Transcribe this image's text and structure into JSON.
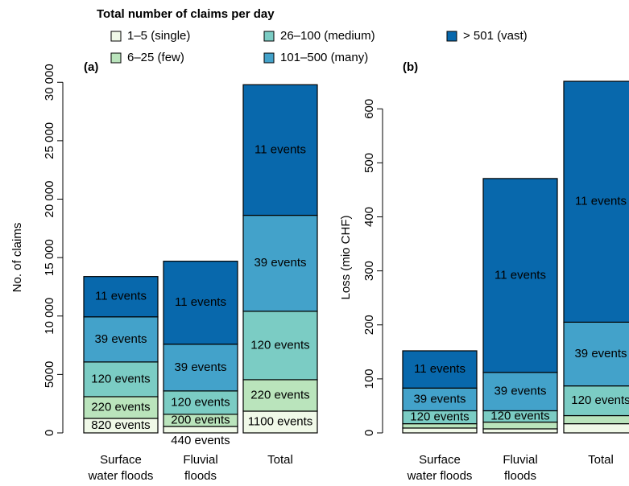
{
  "chart_data": [
    {
      "type": "bar",
      "stacked": true,
      "title": "Total number of claims per day",
      "panel_label": "(a)",
      "ylabel": "No. of claims",
      "categories": [
        [
          "Surface",
          "water floods"
        ],
        [
          "Fluvial",
          "floods"
        ],
        [
          "Total"
        ]
      ],
      "ylim": [
        0,
        30500
      ],
      "yticks": [
        0,
        5000,
        {
          "value": 10000,
          "label": "10 000"
        },
        {
          "value": 15000,
          "label": "15 000"
        },
        {
          "value": 20000,
          "label": "20 000"
        },
        {
          "value": 25000,
          "label": "25 000"
        },
        {
          "value": 30000,
          "label": "30 000"
        }
      ],
      "series": [
        {
          "name": "1–5 (single)",
          "color": "#f0f9e8",
          "values": [
            1240,
            550,
            1860
          ],
          "labels": [
            "820 events",
            "440 events",
            "1100 events"
          ]
        },
        {
          "name": "6–25 (few)",
          "color": "#bae4bc",
          "values": [
            1860,
            1040,
            2690
          ],
          "labels": [
            "220 events",
            "200 events",
            "220 events"
          ]
        },
        {
          "name": "26–100 (medium)",
          "color": "#7bccc4",
          "values": [
            2970,
            2000,
            5860
          ],
          "labels": [
            "120 events",
            "120 events",
            "120 events"
          ]
        },
        {
          "name": "101–500 (many)",
          "color": "#43a2ca",
          "values": [
            3860,
            4000,
            8210
          ],
          "labels": [
            "39 events",
            "39 events",
            "39 events"
          ]
        },
        {
          "name": "> 501 (vast)",
          "color": "#0868ac",
          "values": [
            3450,
            7100,
            11170
          ],
          "labels": [
            "11 events",
            "11 events",
            "11 events"
          ]
        }
      ]
    },
    {
      "type": "bar",
      "stacked": true,
      "panel_label": "(b)",
      "ylabel": "Loss (mio CHF)",
      "categories": [
        [
          "Surface",
          "water floods"
        ],
        [
          "Fluvial",
          "floods"
        ],
        [
          "Total"
        ]
      ],
      "ylim": [
        0,
        660
      ],
      "yticks": [
        0,
        100,
        200,
        300,
        400,
        500,
        600
      ],
      "series": [
        {
          "name": "1–5 (single)",
          "color": "#f0f9e8",
          "values": [
            9,
            7.5,
            17
          ],
          "labels": [
            null,
            null,
            null
          ]
        },
        {
          "name": "6–25 (few)",
          "color": "#bae4bc",
          "values": [
            8,
            12.5,
            15
          ],
          "labels": [
            null,
            null,
            null
          ]
        },
        {
          "name": "26–100 (medium)",
          "color": "#7bccc4",
          "values": [
            24,
            21,
            55
          ],
          "labels": [
            "120 events",
            "120 events",
            "120 events"
          ]
        },
        {
          "name": "101–500 (many)",
          "color": "#43a2ca",
          "values": [
            42,
            71,
            118
          ],
          "labels": [
            "39 events",
            "39 events",
            "39 events"
          ]
        },
        {
          "name": "> 501 (vast)",
          "color": "#0868ac",
          "values": [
            69,
            359,
            446
          ],
          "labels": [
            "11 events",
            "11 events",
            "11 events"
          ]
        }
      ]
    }
  ]
}
